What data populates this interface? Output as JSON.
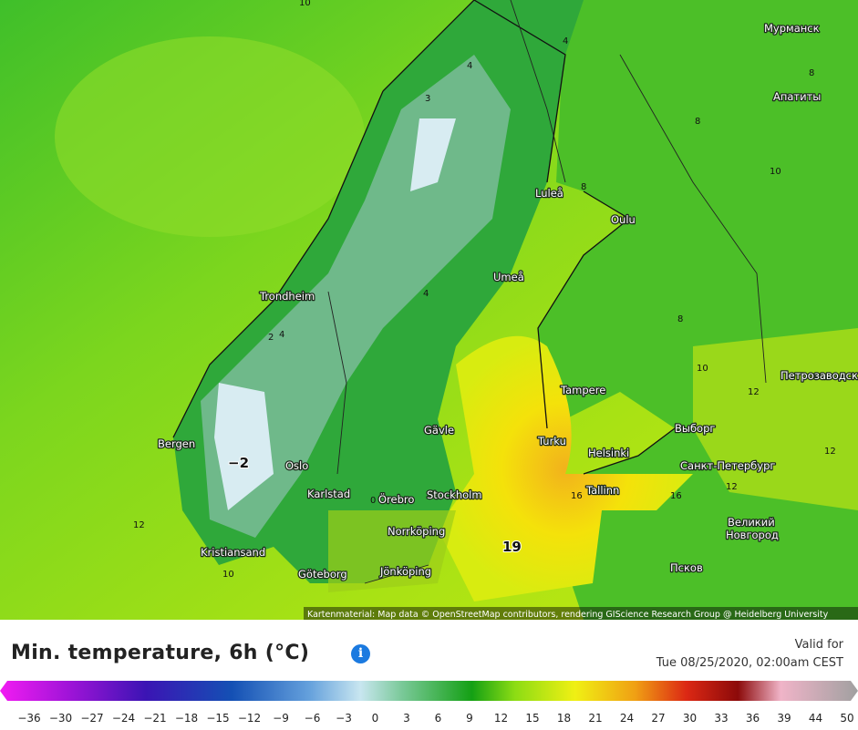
{
  "map": {
    "cities": [
      "Мурманск",
      "Апатиты",
      "Luleå",
      "Oulu",
      "Umeå",
      "Trondheim",
      "Tampere",
      "Петрозаводск",
      "Выборг",
      "Bergen",
      "Gävle",
      "Turku",
      "Helsinki",
      "Санкт-Петербург",
      "Oslo",
      "Karlstad",
      "Örebro",
      "Stockholm",
      "Tallinn",
      "Великий",
      "Новгород",
      "Norrköping",
      "Kristiansand",
      "Göteborg",
      "Jönköping",
      "Псков"
    ],
    "contour_labels": [
      "10",
      "4",
      "4",
      "3",
      "8",
      "8",
      "10",
      "8",
      "4",
      "8",
      "2",
      "4",
      "10",
      "12",
      "12",
      "−2",
      "16",
      "16",
      "12",
      "0",
      "12",
      "19",
      "10"
    ],
    "attribution": "Kartenmaterial: Map data © OpenStreetMap contributors, rendering GIScience Research Group @ Heidelberg University"
  },
  "header": {
    "title": "Min. temperature, 6h (°C)",
    "info": "i",
    "valid_for": "Valid for",
    "valid_time": "Tue 08/25/2020, 02:00am CEST"
  },
  "legend": {
    "ticks": [
      "−36",
      "−30",
      "−27",
      "−24",
      "−21",
      "−18",
      "−15",
      "−12",
      "−9",
      "−6",
      "−3",
      "0",
      "3",
      "6",
      "9",
      "12",
      "15",
      "18",
      "21",
      "24",
      "27",
      "30",
      "33",
      "36",
      "39",
      "44",
      "50"
    ]
  }
}
